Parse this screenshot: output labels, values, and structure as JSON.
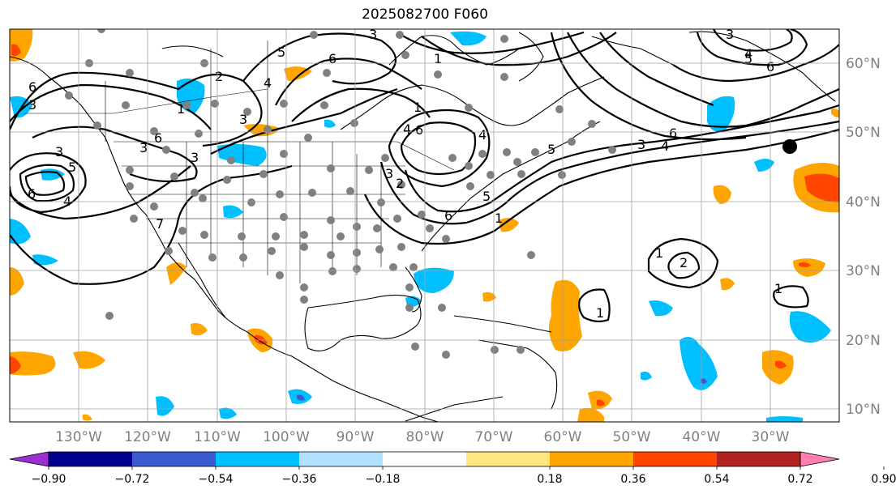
{
  "title": "2025082700 F060",
  "lat_labels": [
    "60°N",
    "50°N",
    "40°N",
    "30°N",
    "20°N",
    "10°N"
  ],
  "lon_labels": [
    "130°W",
    "120°W",
    "110°W",
    "100°W",
    "90°W",
    "80°W",
    "70°W",
    "60°W",
    "50°W",
    "40°W",
    "30°W"
  ],
  "colorbar": {
    "ticks": [
      "−0.90",
      "−0.72",
      "−0.54",
      "−0.36",
      "−0.18",
      "0.18",
      "0.36",
      "0.54",
      "0.72",
      "0.90"
    ],
    "colors": [
      "#9b30d0",
      "#000090",
      "#3a5bd0",
      "#00bfff",
      "#b0e2ff",
      "#ffffff",
      "#ffe680",
      "#ffa500",
      "#ff4500",
      "#b22222",
      "#ff7fb0"
    ]
  },
  "contour_labels": [
    "3",
    "6",
    "4",
    "5",
    "6",
    "3",
    "3",
    "6",
    "7",
    "1",
    "3",
    "2",
    "4",
    "5",
    "6",
    "3",
    "3",
    "1",
    "1",
    "4",
    "6",
    "3",
    "2",
    "4",
    "6",
    "5",
    "5",
    "3",
    "4",
    "6",
    "3",
    "1",
    "2",
    "1",
    "1"
  ],
  "shading_colors": {
    "light_blue": "#00bfff",
    "orange": "#ffa500",
    "red_orange": "#ff4500",
    "purple_blue": "#3a5bd0"
  },
  "station_color": "#808080",
  "marker_color": "#000000"
}
